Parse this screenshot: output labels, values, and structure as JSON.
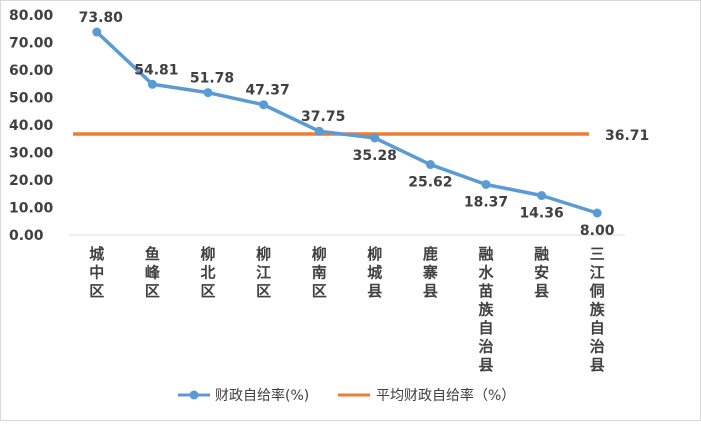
{
  "chart_data": {
    "type": "line",
    "categories": [
      [
        "城",
        "中",
        "区"
      ],
      [
        "鱼",
        "峰",
        "区"
      ],
      [
        "柳",
        "北",
        "区"
      ],
      [
        "柳",
        "江",
        "区"
      ],
      [
        "柳",
        "南",
        "区"
      ],
      [
        "柳",
        "城",
        "县"
      ],
      [
        "鹿",
        "寨",
        "县"
      ],
      [
        "融",
        "水",
        "苗",
        "族",
        "自",
        "治",
        "县"
      ],
      [
        "融",
        "安",
        "县"
      ],
      [
        "三",
        "江",
        "侗",
        "族",
        "自",
        "治",
        "县"
      ]
    ],
    "series": [
      {
        "name": "财政自给率(%)",
        "color": "#5B9BD5",
        "values": [
          73.8,
          54.81,
          51.78,
          47.37,
          37.75,
          35.28,
          25.62,
          18.37,
          14.36,
          8.0
        ],
        "labels": [
          "73.80",
          "54.81",
          "51.78",
          "47.37",
          "37.75",
          "35.28",
          "25.62",
          "18.37",
          "14.36",
          "8.00"
        ]
      },
      {
        "name": "平均财政自给率（%）",
        "color": "#ED7D31",
        "value": 36.71,
        "label": "36.71"
      }
    ],
    "y_ticks": [
      "0.00",
      "10.00",
      "20.00",
      "30.00",
      "40.00",
      "50.00",
      "60.00",
      "70.00",
      "80.00"
    ],
    "ylim": [
      0,
      80
    ],
    "grid": false,
    "legend_position": "bottom"
  }
}
